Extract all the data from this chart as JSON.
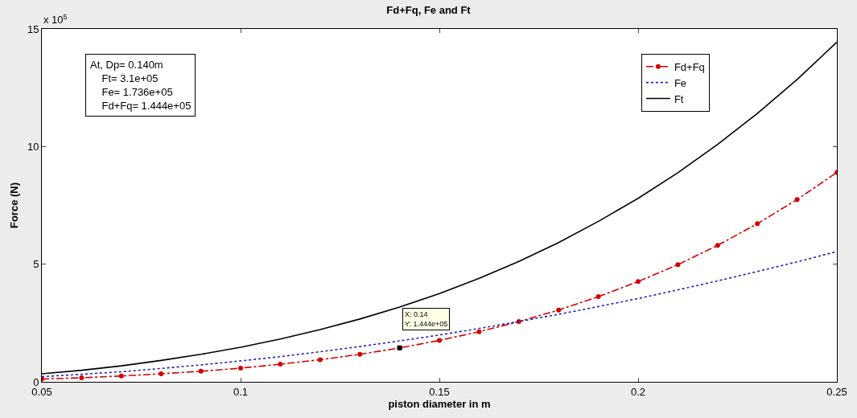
{
  "chart_data": {
    "type": "line",
    "title": "Fd+Fq, Fe and Ft",
    "xlabel": "piston diameter in m",
    "ylabel": "Force (N)",
    "x": [
      0.05,
      0.06,
      0.07,
      0.08,
      0.09,
      0.1,
      0.11,
      0.12,
      0.13,
      0.14,
      0.15,
      0.16,
      0.17,
      0.18,
      0.19,
      0.2,
      0.21,
      0.22,
      0.23,
      0.24,
      0.25
    ],
    "series": [
      {
        "name": "Fd+Fq",
        "color": "#d40000",
        "marker": "circle",
        "line_style": "dashed",
        "values": [
          0.12,
          0.17,
          0.25,
          0.34,
          0.45,
          0.58,
          0.75,
          0.94,
          1.17,
          1.44,
          1.76,
          2.13,
          2.56,
          3.05,
          3.62,
          4.26,
          4.98,
          5.8,
          6.72,
          7.75,
          8.9
        ]
      },
      {
        "name": "Fe",
        "color": "#1f1fbf",
        "marker": "none",
        "line_style": "dotted",
        "values": [
          0.22,
          0.32,
          0.43,
          0.57,
          0.72,
          0.89,
          1.07,
          1.28,
          1.5,
          1.74,
          1.99,
          2.27,
          2.56,
          2.87,
          3.2,
          3.54,
          3.91,
          4.29,
          4.69,
          5.1,
          5.54
        ]
      },
      {
        "name": "Ft",
        "color": "#000000",
        "marker": "none",
        "line_style": "solid",
        "values": [
          0.34,
          0.49,
          0.68,
          0.91,
          1.17,
          1.47,
          1.82,
          2.22,
          2.67,
          3.18,
          3.75,
          4.4,
          5.12,
          5.92,
          6.82,
          7.8,
          8.89,
          10.09,
          11.41,
          12.85,
          14.44
        ]
      }
    ],
    "xlim": [
      0.05,
      0.25
    ],
    "xticks": [
      0.05,
      0.1,
      0.15,
      0.2,
      0.25
    ],
    "ylim": [
      0,
      15
    ],
    "yticks": [
      0,
      5,
      10,
      15
    ],
    "grid": false,
    "legend": "top right",
    "annotations": [
      "x 10$^{5}$",
      "At, Dp= 0.140m\n    Ft= 3.1e+05\n    Fe= 1.736e+05\n    Fd+Fq= 1.444e+05",
      {
        "text": "X: 0.14\nY: 1.444e+05",
        "x": 0.14,
        "y": 1.444
      }
    ]
  }
}
